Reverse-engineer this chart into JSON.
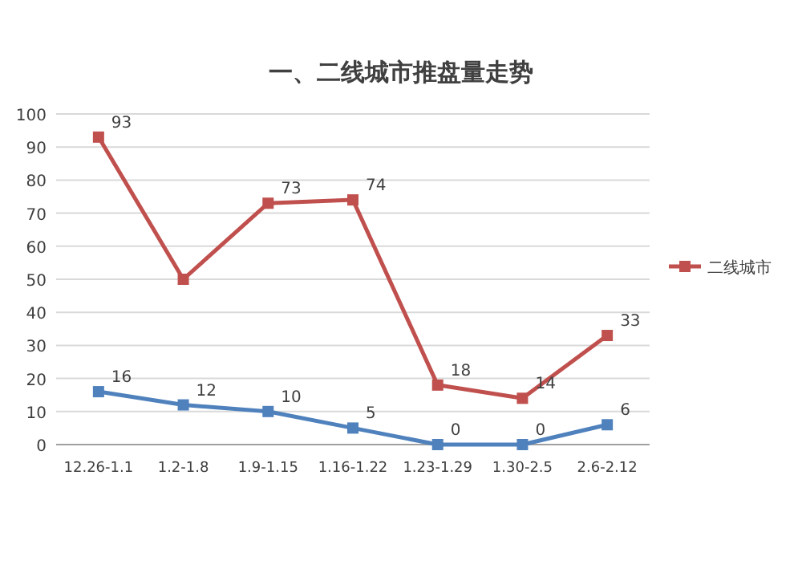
{
  "chart_data": {
    "type": "line",
    "title": "一、二线城市推盘量走势",
    "categories": [
      "12.26-1.1",
      "1.2-1.8",
      "1.9-1.15",
      "1.16-1.22",
      "1.23-1.29",
      "1.30-2.5",
      "2.6-2.12"
    ],
    "series": [
      {
        "color": "#4f81bd",
        "values": [
          16,
          12,
          10,
          5,
          0,
          0,
          6
        ],
        "value_labels": [
          "16",
          "12",
          "10",
          "5",
          "0",
          "0",
          "6"
        ]
      },
      {
        "name": "二线城市",
        "color": "#c0504d",
        "values": [
          93,
          50,
          73,
          74,
          18,
          14,
          33
        ],
        "value_labels": [
          "93",
          null,
          "73",
          "74",
          "18",
          "14",
          "33"
        ]
      }
    ],
    "ylim": [
      0,
      100
    ],
    "yticks": [
      0,
      10,
      20,
      30,
      40,
      50,
      60,
      70,
      80,
      90,
      100
    ],
    "grid": "y",
    "legend": "right",
    "marker": "square"
  }
}
